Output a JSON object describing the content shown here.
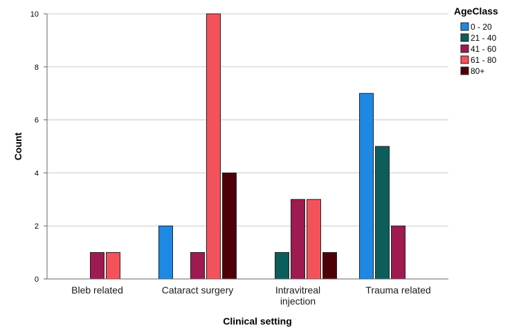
{
  "chart_data": {
    "type": "bar",
    "xlabel": "Clinical setting",
    "ylabel": "Count",
    "ylim": [
      0,
      10
    ],
    "yticks": [
      0,
      2,
      4,
      6,
      8,
      10
    ],
    "categories": [
      [
        "Bleb related"
      ],
      [
        "Cataract surgery"
      ],
      [
        "Intravitreal",
        "injection"
      ],
      [
        "Trauma related"
      ]
    ],
    "legend": {
      "title": "AgeClass",
      "position": "top-right"
    },
    "grid": true,
    "series": [
      {
        "name": "0 - 20",
        "color": "#1e88e5",
        "values": [
          null,
          2,
          null,
          7
        ]
      },
      {
        "name": "21 - 40",
        "color": "#0b5e5b",
        "values": [
          null,
          null,
          1,
          5
        ]
      },
      {
        "name": "41 - 60",
        "color": "#9e1a50",
        "values": [
          1,
          1,
          3,
          2
        ]
      },
      {
        "name": "61 - 80",
        "color": "#f4525a",
        "values": [
          1,
          10,
          3,
          null
        ]
      },
      {
        "name": "80+",
        "color": "#4e0008",
        "values": [
          null,
          4,
          1,
          null
        ]
      }
    ]
  }
}
